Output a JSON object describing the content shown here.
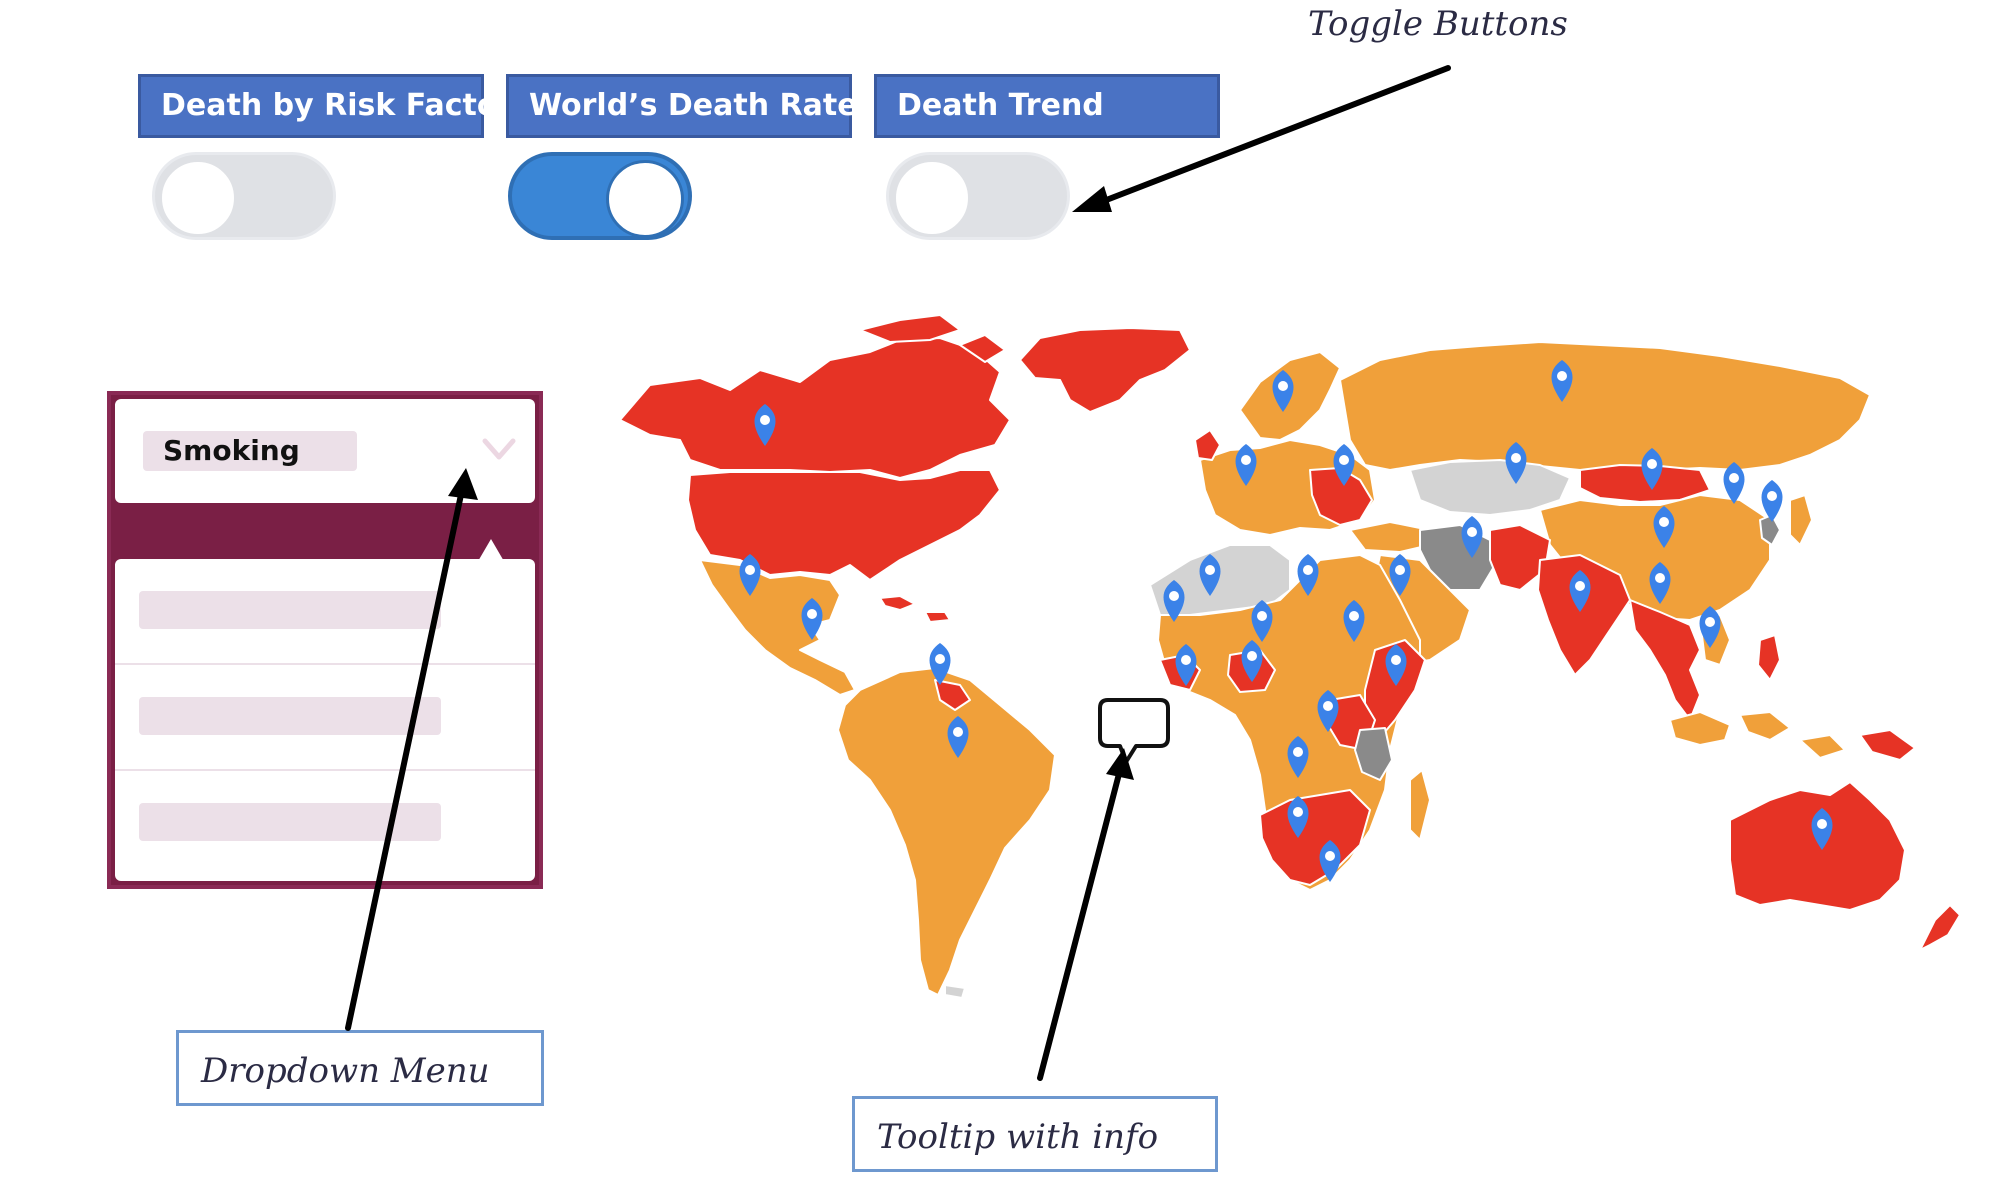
{
  "toggles": [
    {
      "label": "Death by Risk Factor",
      "state": "off"
    },
    {
      "label": "World’s Death Rate",
      "state": "on"
    },
    {
      "label": "Death Trend",
      "state": "off"
    }
  ],
  "dropdown": {
    "selected": "Smoking",
    "options_count": 3
  },
  "annotations": {
    "toggle_buttons": "Toggle Buttons",
    "dropdown_menu": "Dropdown Menu",
    "tooltip_with_info": "Tooltip with info"
  },
  "colors": {
    "header_blue": "#4a72c4",
    "toggle_on": "#3a86d6",
    "dropdown_maroon": "#7a1f45",
    "map_red": "#e63325",
    "map_orange": "#f0a03a",
    "map_light_gray": "#d3d3d3",
    "map_dark_gray": "#8a8a8a",
    "pin_blue": "#3b82e8"
  },
  "icons": {
    "map_marker": "map-pin-icon",
    "tooltip": "speech-bubble-icon",
    "chevron": "chevron-down-icon"
  }
}
